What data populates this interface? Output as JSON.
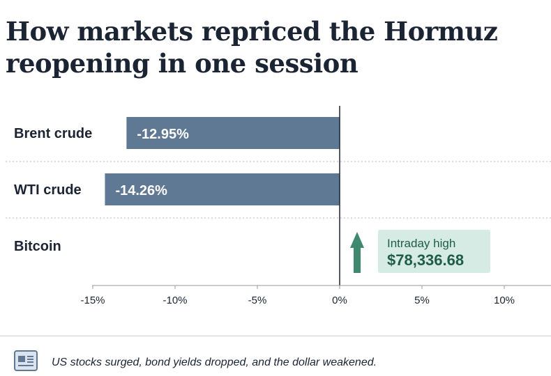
{
  "title": "How markets repriced the Hormuz reopening in one session",
  "chart_data": {
    "type": "bar",
    "orientation": "horizontal",
    "categories": [
      "Brent crude",
      "WTI crude",
      "Bitcoin"
    ],
    "values": [
      -12.95,
      -14.26,
      null
    ],
    "value_labels": [
      "-12.95%",
      "-14.26%",
      ""
    ],
    "xlim": [
      -15,
      13
    ],
    "xticks": [
      -15,
      -10,
      -5,
      0,
      5,
      10
    ],
    "xtick_labels": [
      "-15%",
      "-10%",
      "-5%",
      "0%",
      "5%",
      "10%"
    ],
    "grid": false,
    "bar_color": "#5f7894",
    "annotation": {
      "category": "Bitcoin",
      "label": "Intraday high",
      "value": "$78,336.68",
      "direction": "up",
      "color": "#3f8a6e",
      "background": "#d6ebe3"
    }
  },
  "footer": {
    "icon": "newspaper-icon",
    "text": "US stocks surged, bond yields dropped, and the dollar weakened."
  }
}
